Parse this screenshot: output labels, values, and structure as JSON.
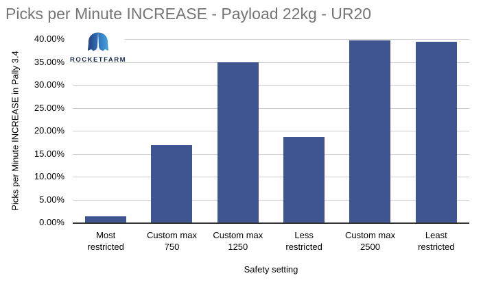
{
  "title": "Picks per Minute INCREASE - Payload 22kg - UR20",
  "logo": {
    "text": "ROCKETFARM"
  },
  "chart_data": {
    "type": "bar",
    "title": "Picks per Minute INCREASE - Payload 22kg - UR20",
    "categories": [
      "Most restricted",
      "Custom max 750",
      "Custom max 1250",
      "Less restricted",
      "Custom max 2500",
      "Least restricted"
    ],
    "values": [
      1.3,
      16.9,
      35.0,
      18.6,
      39.7,
      39.4
    ],
    "values_unit": "%",
    "xlabel": "Safety setting",
    "ylabel": "Picks per Minute INCREASE in Pally 3.4",
    "ylim": [
      0,
      40
    ],
    "ytick_labels": [
      "0.00%",
      "5.00%",
      "10.00%",
      "15.00%",
      "20.00%",
      "25.00%",
      "30.00%",
      "35.00%",
      "40.00%"
    ],
    "grid": true,
    "legend": "none",
    "bar_color": "#3F5591",
    "grid_color": "#cccccc",
    "axis_line_color": "#333333",
    "title_color": "#757575",
    "text_color": "#000000"
  }
}
